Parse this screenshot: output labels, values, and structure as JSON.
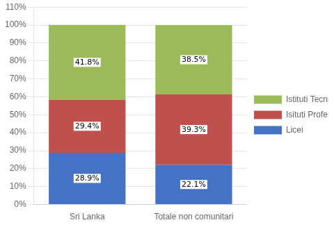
{
  "chart_data": {
    "type": "bar",
    "stacked": true,
    "categories": [
      "Sri Lanka",
      "Totale non comunitari"
    ],
    "series": [
      {
        "name": "Licei",
        "color": "#4472C4",
        "values": [
          28.9,
          22.1
        ],
        "value_labels": [
          "28.9%",
          "22.1%"
        ]
      },
      {
        "name": "Isituti Professionali",
        "color": "#C0504D",
        "values": [
          29.4,
          39.3
        ],
        "value_labels": [
          "29.4%",
          "39.3%"
        ]
      },
      {
        "name": "Istituti Tecnici",
        "color": "#9BBB59",
        "values": [
          41.8,
          38.5
        ],
        "value_labels": [
          "41.8%",
          "38.5%"
        ]
      }
    ],
    "ylim": [
      0,
      110
    ],
    "yticks": [
      {
        "value": 0,
        "label": "0%"
      },
      {
        "value": 10,
        "label": "10%"
      },
      {
        "value": 20,
        "label": "20%"
      },
      {
        "value": 30,
        "label": "30%"
      },
      {
        "value": 40,
        "label": "40%"
      },
      {
        "value": 50,
        "label": "50%"
      },
      {
        "value": 60,
        "label": "60%"
      },
      {
        "value": 70,
        "label": "70%"
      },
      {
        "value": 80,
        "label": "80%"
      },
      {
        "value": 90,
        "label": "90%"
      },
      {
        "value": 100,
        "label": "100%"
      },
      {
        "value": 110,
        "label": "110%"
      }
    ],
    "grid": true,
    "legend": "right",
    "data_labels": true
  }
}
